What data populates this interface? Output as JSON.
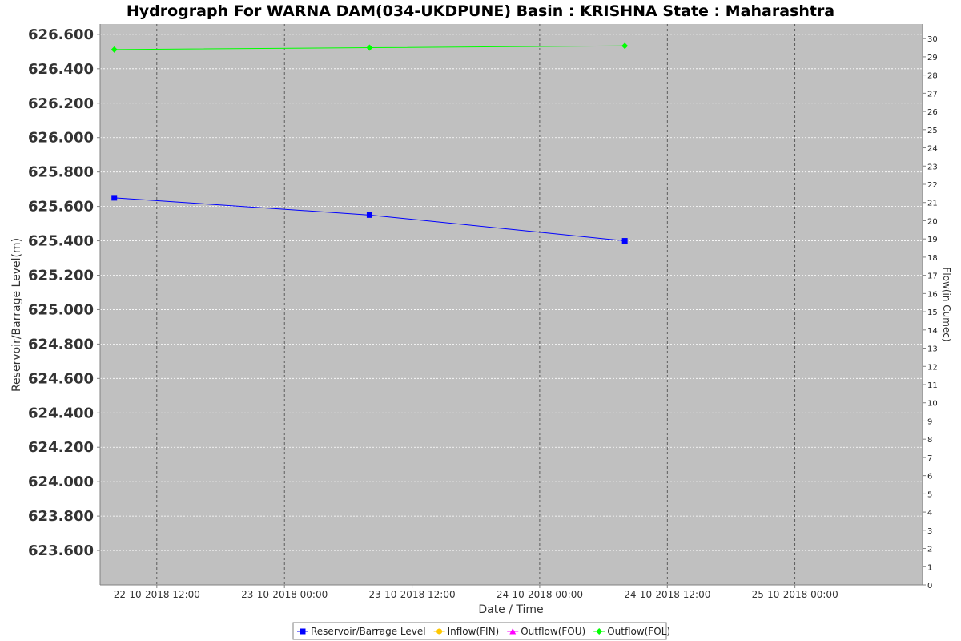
{
  "chart_data": {
    "type": "line",
    "title": "Hydrograph For WARNA DAM(034-UKDPUNE) Basin : KRISHNA State : Maharashtra",
    "xlabel": "Date / Time",
    "ylabel": "Reservoir/Barrage Level(m)",
    "y2label": "Flow(in Cumec)",
    "x_ticks": [
      "22-10-2018 12:00",
      "23-10-2018 00:00",
      "23-10-2018 12:00",
      "24-10-2018 00:00",
      "24-10-2018 12:00",
      "25-10-2018 00:00"
    ],
    "xlim": [
      "22-10-2018 06:40",
      "25-10-2018 12:00"
    ],
    "y_ticks": [
      "623.600",
      "623.800",
      "624.000",
      "624.200",
      "624.400",
      "624.600",
      "624.800",
      "625.000",
      "625.200",
      "625.400",
      "625.600",
      "625.800",
      "626.000",
      "626.200",
      "626.400",
      "626.600"
    ],
    "ylim": [
      623.4,
      626.66
    ],
    "y2_ticks": [
      "0",
      "1",
      "2",
      "3",
      "4",
      "5",
      "6",
      "7",
      "8",
      "9",
      "10",
      "11",
      "12",
      "13",
      "14",
      "15",
      "16",
      "17",
      "18",
      "19",
      "20",
      "21",
      "22",
      "23",
      "24",
      "25",
      "26",
      "27",
      "28",
      "29",
      "30"
    ],
    "y2lim": [
      0,
      30.8
    ],
    "grid": true,
    "legend_position": "bottom",
    "series": [
      {
        "name": "Reservoir/Barrage Level",
        "axis": "left",
        "color": "#0000ff",
        "marker": "square",
        "points": [
          {
            "x": "22-10-2018 08:00",
            "y": 625.65
          },
          {
            "x": "23-10-2018 08:00",
            "y": 625.55
          },
          {
            "x": "24-10-2018 08:00",
            "y": 625.4
          }
        ]
      },
      {
        "name": "Inflow(FIN)",
        "axis": "right",
        "color": "#ffc800",
        "marker": "circle",
        "points": []
      },
      {
        "name": "Outflow(FOU)",
        "axis": "right",
        "color": "#ff00ff",
        "marker": "triangle",
        "points": []
      },
      {
        "name": "Outflow(FOL)",
        "axis": "right",
        "color": "#00ff00",
        "marker": "diamond",
        "points": [
          {
            "x": "22-10-2018 08:00",
            "y": 29.4
          },
          {
            "x": "23-10-2018 08:00",
            "y": 29.5
          },
          {
            "x": "24-10-2018 08:00",
            "y": 29.6
          }
        ]
      }
    ]
  }
}
